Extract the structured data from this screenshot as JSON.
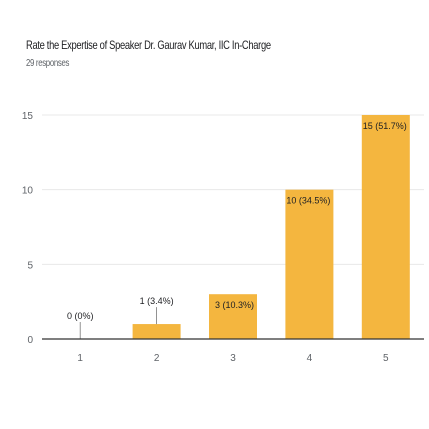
{
  "header": {
    "title": "Rate the Expertise of Speaker Dr. Gaurav Kumar, IIC In-Charge",
    "responses": "29 responses"
  },
  "colors": {
    "bar": "#f4b63f",
    "grid": "#e8e8e8",
    "axis": "#333333"
  },
  "chart_data": {
    "type": "bar",
    "categories": [
      "1",
      "2",
      "3",
      "4",
      "5"
    ],
    "values": [
      0,
      1,
      3,
      10,
      15
    ],
    "labels": [
      "0 (0%)",
      "1 (3.4%)",
      "3 (10.3%)",
      "10 (34.5%)",
      "15 (51.7%)"
    ],
    "yticks": [
      0,
      5,
      10,
      15
    ],
    "ylim": [
      0,
      15
    ],
    "grid": true,
    "title": "Rate the Expertise of Speaker Dr. Gaurav Kumar, IIC In-Charge",
    "xlabel": "",
    "ylabel": ""
  }
}
